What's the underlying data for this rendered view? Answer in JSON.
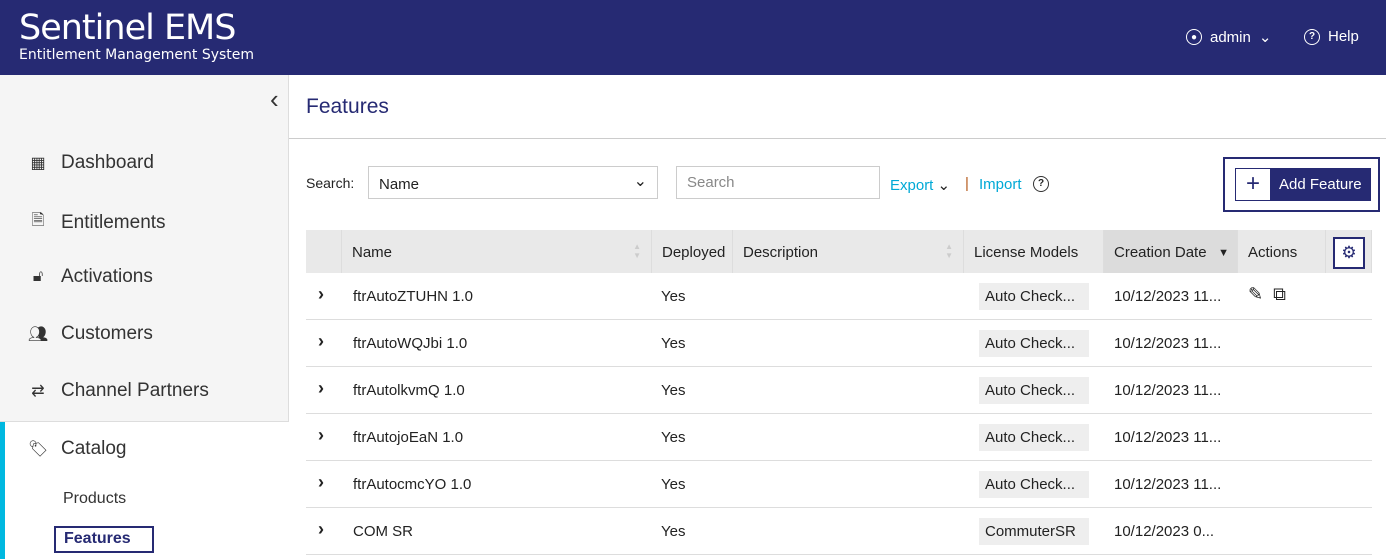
{
  "header": {
    "logo_title": "Sentinel EMS",
    "logo_subtitle": "Entitlement Management System",
    "user": "admin",
    "help": "Help"
  },
  "sidebar": {
    "items": [
      {
        "label": "Dashboard",
        "icon": "grid-icon"
      },
      {
        "label": "Entitlements",
        "icon": "document-icon"
      },
      {
        "label": "Activations",
        "icon": "unlock-icon"
      },
      {
        "label": "Customers",
        "icon": "users-icon"
      },
      {
        "label": "Channel Partners",
        "icon": "handshake-icon"
      },
      {
        "label": "Catalog",
        "icon": "tag-icon"
      }
    ],
    "subitems": [
      {
        "label": "Products"
      },
      {
        "label": "Features",
        "selected": true
      }
    ],
    "accent": "#00b8e0"
  },
  "page": {
    "title": "Features"
  },
  "toolbar": {
    "search_label": "Search:",
    "search_by": "Name",
    "search_placeholder": "Search",
    "export": "Export",
    "import": "Import",
    "add_feature": "Add Feature"
  },
  "table": {
    "columns": [
      "Name",
      "Deployed",
      "Description",
      "License Models",
      "Creation Date",
      "Actions"
    ],
    "sort_column": "Creation Date",
    "sort_dir": "desc",
    "rows": [
      {
        "name": "ftrAutoZTUHN 1.0",
        "deployed": "Yes",
        "description": "",
        "license": "Auto Check...",
        "date": "10/12/2023 11...",
        "actions": true
      },
      {
        "name": "ftrAutoWQJbi 1.0",
        "deployed": "Yes",
        "description": "",
        "license": "Auto Check...",
        "date": "10/12/2023 11..."
      },
      {
        "name": "ftrAutolkvmQ 1.0",
        "deployed": "Yes",
        "description": "",
        "license": "Auto Check...",
        "date": "10/12/2023 11..."
      },
      {
        "name": "ftrAutojoEaN 1.0",
        "deployed": "Yes",
        "description": "",
        "license": "Auto Check...",
        "date": "10/12/2023 11..."
      },
      {
        "name": "ftrAutocmcYO 1.0",
        "deployed": "Yes",
        "description": "",
        "license": "Auto Check...",
        "date": "10/12/2023 11..."
      },
      {
        "name": "COM SR",
        "deployed": "Yes",
        "description": "",
        "license": "CommuterSR",
        "date": "10/12/2023 0..."
      }
    ]
  },
  "colors": {
    "brand": "#262a73",
    "link": "#00a9d6"
  }
}
